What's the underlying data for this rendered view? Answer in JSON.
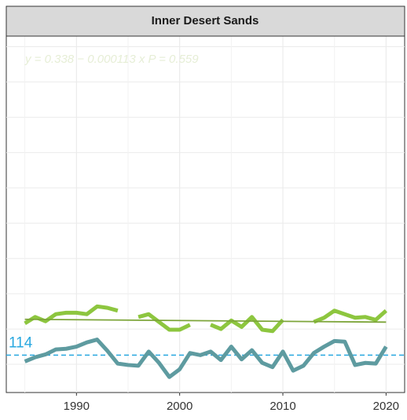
{
  "chart_data": {
    "type": "line",
    "title": "Inner Desert Sands",
    "annotations": [
      "y = 0.338 − 0.000113 x   P = 0.559",
      "114"
    ],
    "trend": {
      "intercept": 0.338,
      "slope": -0.000113,
      "color": "#7da53a"
    },
    "hline": 0.063,
    "hline_color": "#29a8e0",
    "x": [
      1985,
      1986,
      1987,
      1988,
      1989,
      1990,
      1991,
      1992,
      1993,
      1994,
      1995,
      1996,
      1997,
      1998,
      1999,
      2000,
      2001,
      2002,
      2003,
      2004,
      2005,
      2006,
      2007,
      2008,
      2009,
      2010,
      2011,
      2012,
      2013,
      2014,
      2015,
      2016,
      2017,
      2018,
      2019,
      2020
    ],
    "series": [
      {
        "color": "#8dc63f",
        "values": [
          0.108,
          0.117,
          0.111,
          0.121,
          0.123,
          0.123,
          0.121,
          0.132,
          0.13,
          0.126,
          null,
          0.117,
          0.121,
          0.11,
          0.099,
          0.099,
          0.106,
          null,
          0.106,
          0.1,
          0.112,
          0.103,
          0.117,
          0.099,
          0.097,
          0.113,
          null,
          null,
          0.11,
          0.116,
          0.126,
          0.121,
          0.116,
          0.117,
          0.113,
          0.126
        ]
      },
      {
        "color": "#5e9ba0",
        "values": [
          0.054,
          0.06,
          0.064,
          0.071,
          0.072,
          0.075,
          0.081,
          0.085,
          0.069,
          0.051,
          0.049,
          0.048,
          0.068,
          0.052,
          0.032,
          0.043,
          0.066,
          0.063,
          0.068,
          0.056,
          0.075,
          0.057,
          0.07,
          0.052,
          0.046,
          0.068,
          0.041,
          0.048,
          0.066,
          0.075,
          0.083,
          0.082,
          0.049,
          0.052,
          0.051,
          0.075
        ]
      }
    ],
    "xlim": [
      1983.2,
      2021.8
    ],
    "xticks": [
      1990,
      2000,
      2010,
      2020
    ],
    "ylim": [
      0.01,
      0.515
    ],
    "yticks": [
      0.05,
      0.1,
      0.15,
      0.2,
      0.25,
      0.3,
      0.35,
      0.4,
      0.45,
      0.5
    ],
    "grid": true
  }
}
